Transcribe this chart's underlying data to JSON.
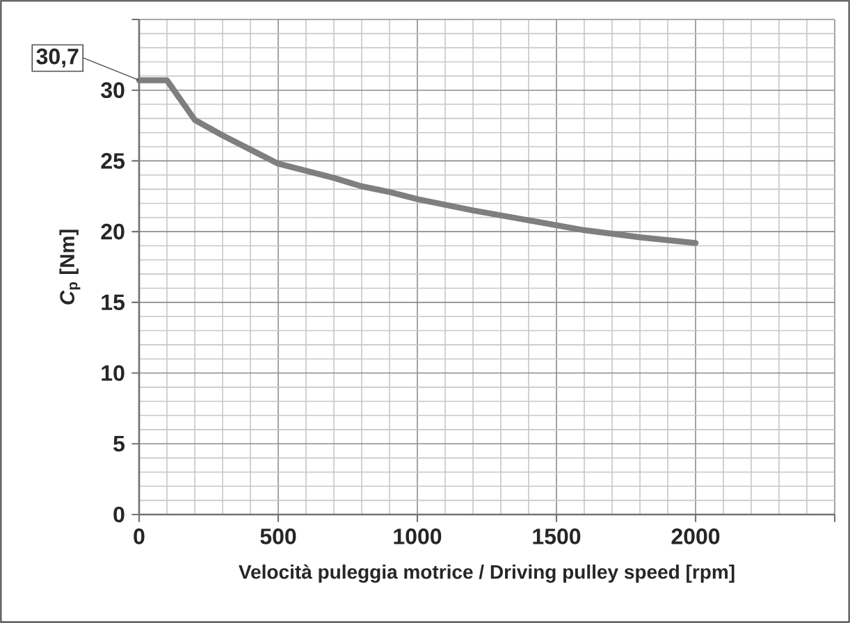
{
  "chart_data": {
    "type": "line",
    "xlabel": "Velocità puleggia motrice / Driving pulley speed  [rpm]",
    "ylabel": "*C*$_{p}$ [Nm]",
    "x": [
      0,
      100,
      200,
      300,
      400,
      500,
      600,
      700,
      800,
      900,
      1000,
      1200,
      1400,
      1600,
      1800,
      2000
    ],
    "series": [
      {
        "color": "#7f7f7f",
        "values": [
          30.7,
          30.7,
          27.9,
          26.8,
          25.8,
          24.8,
          24.3,
          23.8,
          23.2,
          22.8,
          22.3,
          21.5,
          20.8,
          20.1,
          19.6,
          19.2
        ]
      }
    ],
    "xlim": [
      0,
      2500
    ],
    "ylim": [
      0,
      35
    ],
    "xticks": [
      0,
      500,
      1000,
      1500,
      2000,
      {
        "value": 2500,
        "label": null
      }
    ],
    "yticks": [
      0,
      5,
      10,
      15,
      20,
      25,
      30,
      {
        "value": 35,
        "label": null
      }
    ],
    "grid": true,
    "line_style": "solid",
    "annotations": [
      {
        "text": "30,7",
        "x": 0,
        "y": 30.7
      }
    ]
  }
}
